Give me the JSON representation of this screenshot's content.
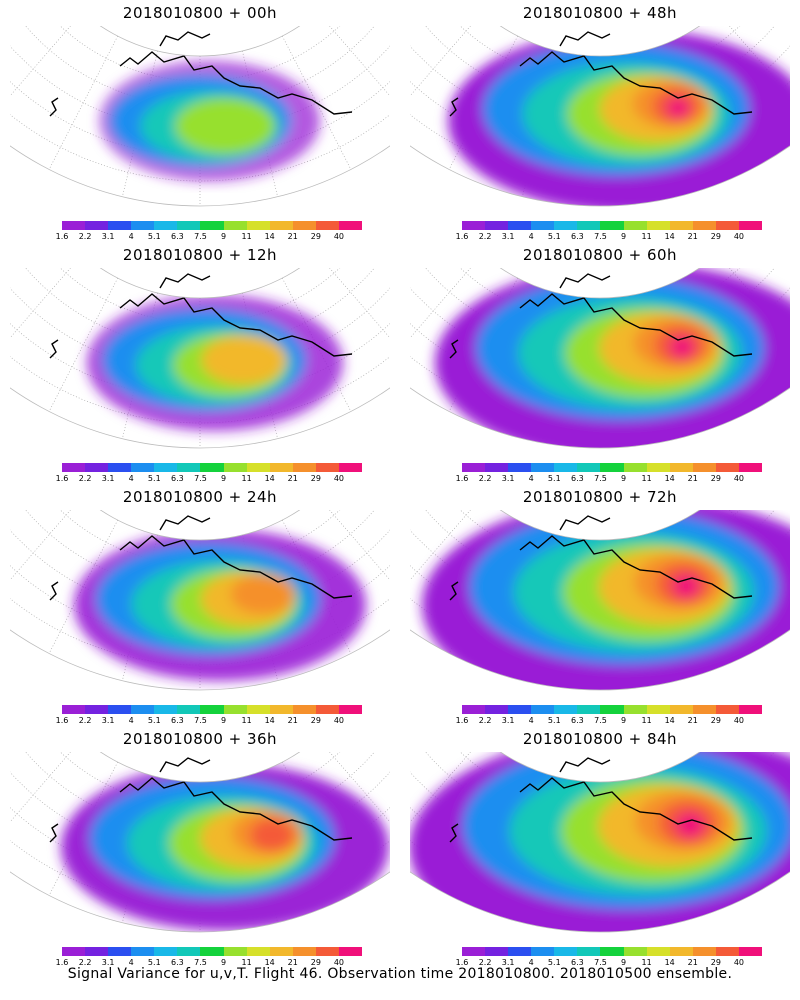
{
  "caption": "Signal Variance for u,v,T. Flight 46. Observation time 2018010800. 2018010500 ensemble.",
  "colorbar": {
    "labels": [
      "1.6",
      "2.2",
      "3.1",
      "4",
      "5.1",
      "6.3",
      "7.5",
      "9",
      "11",
      "14",
      "21",
      "29",
      "40"
    ],
    "colors": [
      "#9a1fd6",
      "#7422e0",
      "#2b4ff0",
      "#1c8ef0",
      "#19b8e8",
      "#12c8b8",
      "#14d23c",
      "#97e02e",
      "#d6e02a",
      "#f2b82c",
      "#f5902c",
      "#f45a38",
      "#f0107a"
    ]
  },
  "panels": [
    {
      "title": "2018010800 + 00h",
      "intensity": 0
    },
    {
      "title": "2018010800 + 48h",
      "intensity": 4
    },
    {
      "title": "2018010800 + 12h",
      "intensity": 1
    },
    {
      "title": "2018010800 + 60h",
      "intensity": 5
    },
    {
      "title": "2018010800 + 24h",
      "intensity": 2
    },
    {
      "title": "2018010800 + 72h",
      "intensity": 6
    },
    {
      "title": "2018010800 + 36h",
      "intensity": 3
    },
    {
      "title": "2018010800 + 84h",
      "intensity": 7
    }
  ],
  "chart_data": {
    "type": "heatmap",
    "title": "",
    "colorbar_levels": [
      1.6,
      2.2,
      3.1,
      4,
      5.1,
      6.3,
      7.5,
      9,
      11,
      14,
      21,
      29,
      40
    ],
    "panels": [
      "2018010800 + 00h",
      "2018010800 + 12h",
      "2018010800 + 24h",
      "2018010800 + 36h",
      "2018010800 + 48h",
      "2018010800 + 60h",
      "2018010800 + 72h",
      "2018010800 + 84h"
    ]
  }
}
